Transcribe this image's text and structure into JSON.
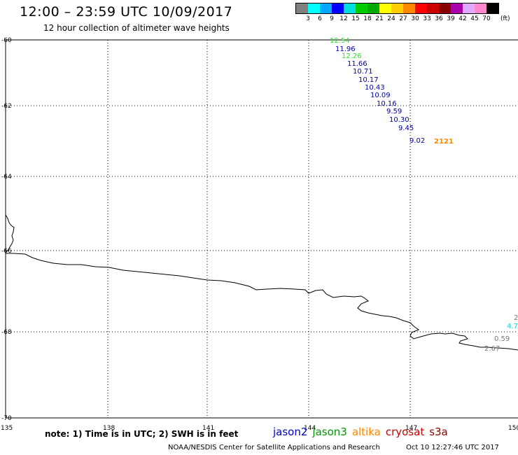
{
  "title": "12:00 – 23:59 UTC 10/09/2017",
  "subtitle": "12 hour collection of altimeter wave heights",
  "legend": {
    "labels": [
      "3",
      "6",
      "9",
      "12",
      "15",
      "18",
      "21",
      "24",
      "27",
      "30",
      "33",
      "36",
      "39",
      "42",
      "45",
      "70"
    ],
    "unit": "(ft)",
    "colors": [
      "#808080",
      "#00ffff",
      "#00aaff",
      "#0000ff",
      "#00dddd",
      "#00cc00",
      "#00aa00",
      "#ffff00",
      "#ffcc00",
      "#ff8800",
      "#ff0000",
      "#cc0000",
      "#880000",
      "#aa00aa",
      "#ddaaff",
      "#ff88cc",
      "#000000"
    ]
  },
  "axes": {
    "lon_ticks": [
      "135",
      "138",
      "141",
      "144",
      "147",
      "150"
    ],
    "lat_ticks": [
      "-60",
      "-62",
      "-64",
      "-66",
      "-68",
      "-70"
    ]
  },
  "observations": [
    {
      "text": "12.54",
      "color": "#33dd33"
    },
    {
      "text": "11.96",
      "color": "#0000aa"
    },
    {
      "text": "12.26",
      "color": "#33dd33"
    },
    {
      "text": "11.66",
      "color": "#0000aa"
    },
    {
      "text": "10.71",
      "color": "#0000aa"
    },
    {
      "text": "10.17",
      "color": "#0000aa"
    },
    {
      "text": "10.43",
      "color": "#0000aa"
    },
    {
      "text": "10.09",
      "color": "#0000aa"
    },
    {
      "text": "10.16",
      "color": "#0000aa"
    },
    {
      "text": "9.59",
      "color": "#0000aa"
    },
    {
      "text": "10.30",
      "color": "#0000aa"
    },
    {
      "text": "9.45",
      "color": "#0000aa"
    },
    {
      "text": "9.02",
      "color": "#0000aa"
    },
    {
      "text": "2121",
      "color": "#ff8800"
    },
    {
      "text": "2",
      "color": "#777777"
    },
    {
      "text": "4.7",
      "color": "#00dddd"
    },
    {
      "text": "0.59",
      "color": "#777777"
    },
    {
      "text": "2.67",
      "color": "#777777"
    }
  ],
  "note": "note: 1) Time is in UTC; 2) SWH is in feet",
  "satellites": [
    {
      "name": "jason2",
      "color": "#0000cc"
    },
    {
      "name": "jason3",
      "color": "#009900"
    },
    {
      "name": "altika",
      "color": "#ff8800"
    },
    {
      "name": "cryosat",
      "color": "#cc0000"
    },
    {
      "name": "s3a",
      "color": "#880000"
    }
  ],
  "credit": "NOAA/NESDIS Center for Satellite Applications and Research",
  "generated": "Oct 10 12:27:46 UTC 2017"
}
